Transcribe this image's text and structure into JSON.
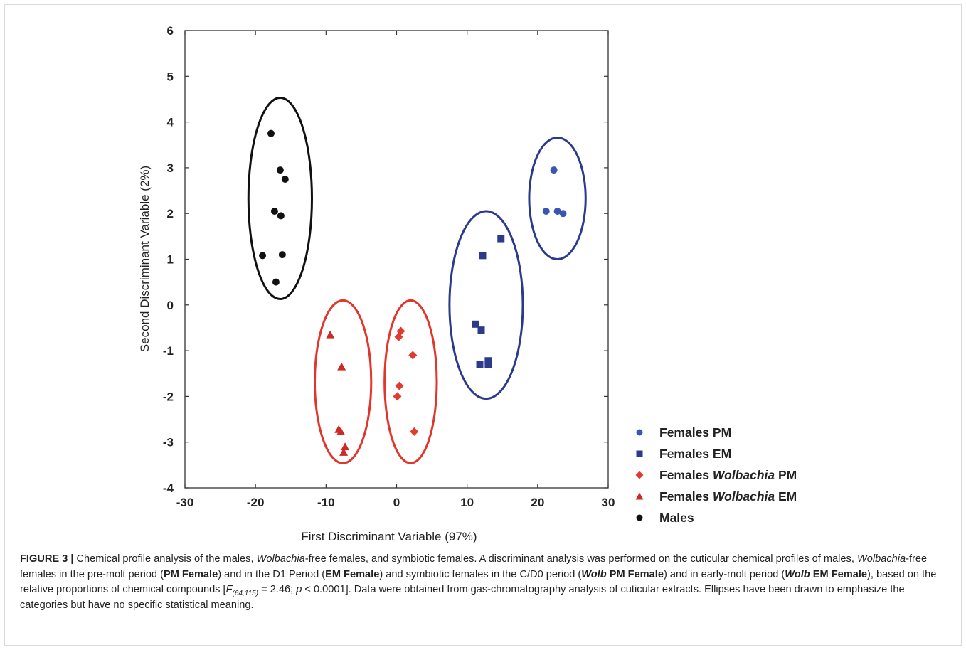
{
  "chart_data": {
    "type": "scatter",
    "xlabel": "First Discriminant Variable (97%)",
    "ylabel": "Second Discriminant Variable (2%)",
    "xlim": [
      -30,
      30
    ],
    "ylim": [
      -4,
      6
    ],
    "xticks": [
      "-30",
      "-20",
      "-10",
      "0",
      "10",
      "20",
      "30"
    ],
    "yticks": [
      "-4",
      "-3",
      "-2",
      "-1",
      "0",
      "1",
      "2",
      "3",
      "4",
      "5",
      "6"
    ],
    "grid": false,
    "legend_position": "right",
    "series": [
      {
        "name": "Females PM",
        "legend_parts": [
          {
            "text": "Females PM",
            "italic": false
          }
        ],
        "marker": "circle",
        "color": "#3a56b0",
        "points": [
          [
            22.3,
            2.95
          ],
          [
            21.2,
            2.05
          ],
          [
            22.8,
            2.05
          ],
          [
            23.6,
            2.0
          ]
        ]
      },
      {
        "name": "Females EM",
        "legend_parts": [
          {
            "text": "Females EM",
            "italic": false
          }
        ],
        "marker": "square",
        "color": "#2c3a8c",
        "points": [
          [
            14.8,
            1.45
          ],
          [
            12.2,
            1.08
          ],
          [
            11.2,
            -0.42
          ],
          [
            12.0,
            -0.55
          ],
          [
            11.8,
            -1.3
          ],
          [
            13.0,
            -1.22
          ],
          [
            13.0,
            -1.3
          ]
        ]
      },
      {
        "name": "Females Wolbachia PM",
        "legend_parts": [
          {
            "text": "Females ",
            "italic": false
          },
          {
            "text": "Wolbachia",
            "italic": true
          },
          {
            "text": " PM",
            "italic": false
          }
        ],
        "marker": "diamond",
        "color": "#e23a30",
        "points": [
          [
            0.6,
            -0.57
          ],
          [
            0.3,
            -0.7
          ],
          [
            2.3,
            -1.1
          ],
          [
            0.4,
            -1.77
          ],
          [
            0.1,
            -2.0
          ],
          [
            2.5,
            -2.77
          ]
        ]
      },
      {
        "name": "Females Wolbachia EM",
        "legend_parts": [
          {
            "text": "Females ",
            "italic": false
          },
          {
            "text": "Wolbachia",
            "italic": true
          },
          {
            "text": " EM",
            "italic": false
          }
        ],
        "marker": "triangle",
        "color": "#cc2a22",
        "points": [
          [
            -9.4,
            -0.65
          ],
          [
            -7.8,
            -1.35
          ],
          [
            -8.2,
            -2.72
          ],
          [
            -7.9,
            -2.77
          ],
          [
            -7.3,
            -3.1
          ],
          [
            -7.5,
            -3.22
          ]
        ]
      },
      {
        "name": "Males",
        "legend_parts": [
          {
            "text": "Males",
            "italic": false
          }
        ],
        "marker": "circle",
        "color": "#111111",
        "points": [
          [
            -17.8,
            3.75
          ],
          [
            -16.5,
            2.95
          ],
          [
            -15.8,
            2.75
          ],
          [
            -17.3,
            2.05
          ],
          [
            -16.4,
            1.95
          ],
          [
            -19.0,
            1.08
          ],
          [
            -16.2,
            1.1
          ],
          [
            -17.1,
            0.5
          ]
        ]
      }
    ],
    "ellipses": [
      {
        "group": "Males",
        "color": "#111111",
        "cx": -16.5,
        "cy": 2.33,
        "rx": 4.5,
        "ry": 2.2
      },
      {
        "group": "Females Wolbachia EM",
        "color": "#e2352b",
        "cx": -7.6,
        "cy": -1.68,
        "rx": 4.0,
        "ry": 1.78
      },
      {
        "group": "Females Wolbachia PM",
        "color": "#e2352b",
        "cx": 2.0,
        "cy": -1.68,
        "rx": 3.7,
        "ry": 1.78
      },
      {
        "group": "Females EM",
        "color": "#2c3a8c",
        "cx": 12.7,
        "cy": 0.0,
        "rx": 5.2,
        "ry": 2.05
      },
      {
        "group": "Females PM",
        "color": "#2c3a8c",
        "cx": 22.8,
        "cy": 2.33,
        "rx": 4.0,
        "ry": 1.33
      }
    ]
  },
  "caption": {
    "figure_label": "FIGURE 3 |",
    "parts": [
      {
        "t": " Chemical profile analysis of the males, "
      },
      {
        "t": "Wolbachia",
        "s": "ital"
      },
      {
        "t": "-free females, and symbiotic females. A discriminant analysis was performed on the cuticular chemical profiles of males, "
      },
      {
        "t": "Wolbachia",
        "s": "ital"
      },
      {
        "t": "-free females in the pre-molt period ("
      },
      {
        "t": "PM Female",
        "s": "bold"
      },
      {
        "t": ") and in the D1 Period ("
      },
      {
        "t": "EM Female",
        "s": "bold"
      },
      {
        "t": ") and symbiotic females in the C/D0 period ("
      },
      {
        "t": "Wolb",
        "s": "bold ital"
      },
      {
        "t": " PM Female",
        "s": "bold"
      },
      {
        "t": ") and in early-molt period ("
      },
      {
        "t": "Wolb",
        "s": "bold ital"
      },
      {
        "t": " EM Female",
        "s": "bold"
      },
      {
        "t": "), based on the relative proportions of chemical compounds ["
      },
      {
        "t": "F",
        "s": "ital"
      },
      {
        "t": "(64,115)",
        "s": "sub"
      },
      {
        "t": " = 2.46; "
      },
      {
        "t": "p",
        "s": "ital"
      },
      {
        "t": " < 0.0001]. Data were obtained from gas-chromatography analysis of cuticular extracts. Ellipses have been drawn to emphasize the categories but have no specific statistical meaning."
      }
    ]
  }
}
